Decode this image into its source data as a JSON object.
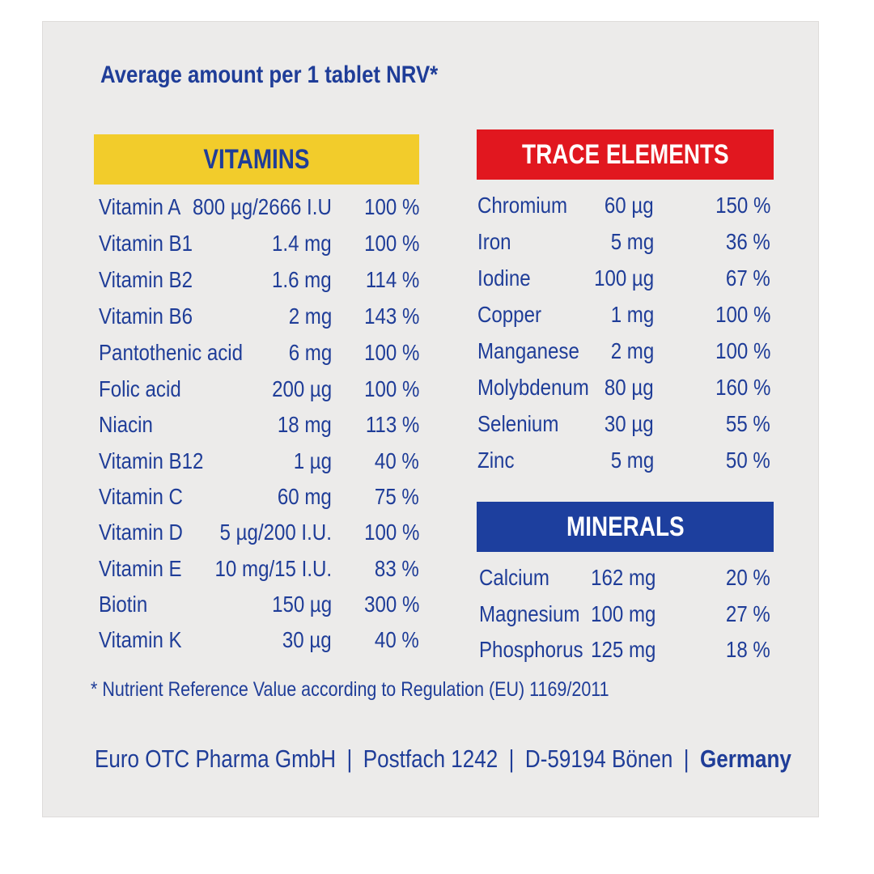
{
  "heading": "Average amount per 1 tablet NRV*",
  "vitamins": {
    "title": "VITAMINS",
    "rows": [
      {
        "name": "Vitamin A",
        "amount": "800 µg/2666 I.U",
        "nrv": "100 %"
      },
      {
        "name": "Vitamin B1",
        "amount": "1.4 mg",
        "nrv": "100 %"
      },
      {
        "name": "Vitamin B2",
        "amount": "1.6 mg",
        "nrv": "114 %"
      },
      {
        "name": "Vitamin B6",
        "amount": "2 mg",
        "nrv": "143 %"
      },
      {
        "name": "Pantothenic acid",
        "amount": "6 mg",
        "nrv": "100 %"
      },
      {
        "name": "Folic acid",
        "amount": "200 µg",
        "nrv": "100 %"
      },
      {
        "name": "Niacin",
        "amount": "18 mg",
        "nrv": "113 %"
      },
      {
        "name": "Vitamin B12",
        "amount": "1 µg",
        "nrv": "40 %"
      },
      {
        "name": "Vitamin C",
        "amount": "60 mg",
        "nrv": "75 %"
      },
      {
        "name": "Vitamin D",
        "amount": "5 µg/200 I.U.",
        "nrv": "100 %"
      },
      {
        "name": "Vitamin E",
        "amount": "10 mg/15 I.U.",
        "nrv": "83 %"
      },
      {
        "name": "Biotin",
        "amount": "150 µg",
        "nrv": "300 %"
      },
      {
        "name": "Vitamin K",
        "amount": "30 µg",
        "nrv": "40 %"
      }
    ]
  },
  "trace_elements": {
    "title": "TRACE ELEMENTS",
    "rows": [
      {
        "name": "Chromium",
        "amount": "60 µg",
        "nrv": "150 %"
      },
      {
        "name": "Iron",
        "amount": "5 mg",
        "nrv": "36 %"
      },
      {
        "name": "Iodine",
        "amount": "100 µg",
        "nrv": "67 %"
      },
      {
        "name": "Copper",
        "amount": "1 mg",
        "nrv": "100 %"
      },
      {
        "name": "Manganese",
        "amount": "2 mg",
        "nrv": "100 %"
      },
      {
        "name": "Molybdenum",
        "amount": "80 µg",
        "nrv": "160 %"
      },
      {
        "name": "Selenium",
        "amount": "30 µg",
        "nrv": "55 %"
      },
      {
        "name": "Zinc",
        "amount": "5 mg",
        "nrv": "50 %"
      }
    ]
  },
  "minerals": {
    "title": "MINERALS",
    "rows": [
      {
        "name": "Calcium",
        "amount": "162 mg",
        "nrv": "20 %"
      },
      {
        "name": "Magnesium",
        "amount": "100 mg",
        "nrv": "27 %"
      },
      {
        "name": "Phosphorus",
        "amount": "125 mg",
        "nrv": "18 %"
      }
    ]
  },
  "footnote": "*  Nutrient Reference Value according to Regulation (EU) 1169/2011",
  "footer": {
    "company": "Euro OTC Pharma GmbH",
    "postbox": "Postfach 1242",
    "city": "D-59194 Bönen",
    "country": "Germany",
    "separator": "|"
  },
  "colors": {
    "text": "#1f3d98",
    "vitamins_band": "#f2cc2b",
    "trace_band": "#e1171f",
    "minerals_band": "#1d3f9e"
  }
}
